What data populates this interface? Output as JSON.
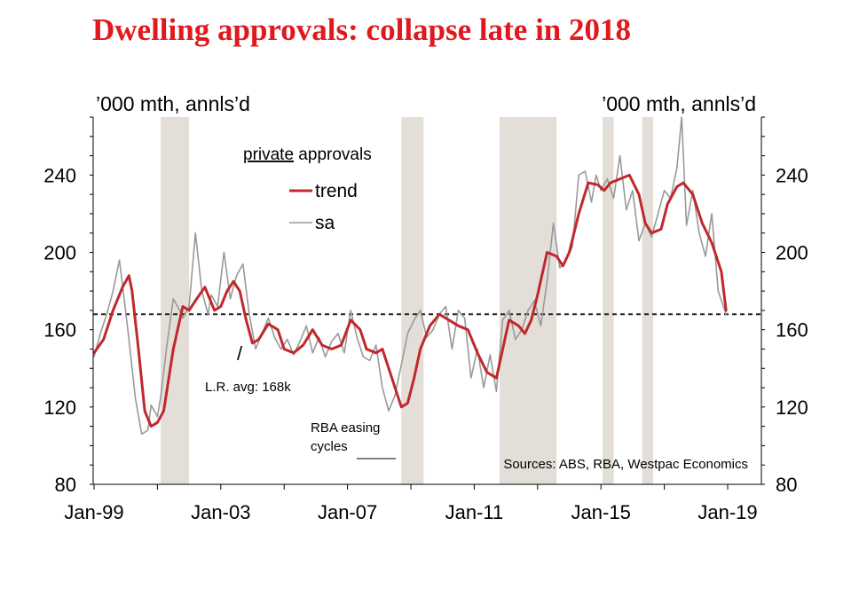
{
  "title": "Dwelling approvals: collapse late in 2018",
  "chart_data": {
    "type": "line",
    "unit_left": "’000 mth, annls’d",
    "unit_right": "’000 mth, annls’d",
    "xlim": [
      1999.0,
      2019.0
    ],
    "ylim": [
      80,
      270
    ],
    "yticks": [
      80,
      120,
      160,
      200,
      240
    ],
    "yticks_right": [
      80,
      120,
      160,
      200,
      240
    ],
    "xticks": [
      {
        "x": 1999.0,
        "label": "Jan-99"
      },
      {
        "x": 2003.0,
        "label": "Jan-03"
      },
      {
        "x": 2007.0,
        "label": "Jan-07"
      },
      {
        "x": 2011.0,
        "label": "Jan-11"
      },
      {
        "x": 2015.0,
        "label": "Jan-15"
      },
      {
        "x": 2019.0,
        "label": "Jan-19"
      }
    ],
    "legend": {
      "title_underlined": "private",
      "title_rest": " approvals",
      "placement": "top-center"
    },
    "series": [
      {
        "name": "trend",
        "color": "#c0282d",
        "width": 3,
        "x": [
          1999.0,
          1999.3,
          1999.6,
          1999.9,
          2000.1,
          2000.2,
          2000.4,
          2000.6,
          2000.8,
          2001.0,
          2001.2,
          2001.5,
          2001.8,
          2002.0,
          2002.2,
          2002.5,
          2002.8,
          2003.0,
          2003.2,
          2003.4,
          2003.6,
          2003.8,
          2004.0,
          2004.2,
          2004.5,
          2004.8,
          2005.0,
          2005.3,
          2005.6,
          2005.9,
          2006.2,
          2006.5,
          2006.8,
          2007.1,
          2007.4,
          2007.6,
          2007.9,
          2008.1,
          2008.4,
          2008.7,
          2008.9,
          2009.1,
          2009.3,
          2009.6,
          2009.9,
          2010.2,
          2010.5,
          2010.8,
          2011.1,
          2011.4,
          2011.7,
          2011.9,
          2012.1,
          2012.4,
          2012.6,
          2012.8,
          2013.0,
          2013.3,
          2013.6,
          2013.8,
          2014.0,
          2014.3,
          2014.6,
          2014.9,
          2015.1,
          2015.3,
          2015.6,
          2015.9,
          2016.2,
          2016.4,
          2016.6,
          2016.9,
          2017.1,
          2017.4,
          2017.6,
          2017.9,
          2018.2,
          2018.5,
          2018.8,
          2018.95
        ],
        "y": [
          148,
          155,
          170,
          182,
          188,
          180,
          150,
          118,
          110,
          112,
          118,
          150,
          172,
          170,
          175,
          182,
          170,
          172,
          180,
          185,
          180,
          165,
          153,
          155,
          163,
          160,
          150,
          148,
          152,
          160,
          152,
          150,
          152,
          165,
          160,
          150,
          148,
          150,
          135,
          120,
          122,
          135,
          150,
          162,
          168,
          165,
          162,
          160,
          148,
          138,
          135,
          150,
          165,
          162,
          158,
          165,
          178,
          200,
          198,
          193,
          200,
          220,
          236,
          235,
          232,
          236,
          238,
          240,
          230,
          215,
          210,
          212,
          225,
          234,
          236,
          230,
          215,
          205,
          190,
          170
        ]
      },
      {
        "name": "sa",
        "color": "#999999",
        "width": 1.6,
        "x": [
          1999.0,
          1999.2,
          1999.4,
          1999.6,
          1999.8,
          1999.95,
          2000.1,
          2000.3,
          2000.5,
          2000.7,
          2000.8,
          2001.0,
          2001.1,
          2001.3,
          2001.5,
          2001.7,
          2001.8,
          2002.0,
          2002.2,
          2002.4,
          2002.6,
          2002.7,
          2002.9,
          2003.1,
          2003.3,
          2003.5,
          2003.7,
          2003.9,
          2004.1,
          2004.3,
          2004.5,
          2004.7,
          2004.9,
          2005.1,
          2005.3,
          2005.5,
          2005.7,
          2005.9,
          2006.1,
          2006.3,
          2006.5,
          2006.7,
          2006.9,
          2007.1,
          2007.3,
          2007.5,
          2007.7,
          2007.9,
          2008.1,
          2008.3,
          2008.5,
          2008.7,
          2008.9,
          2009.1,
          2009.3,
          2009.5,
          2009.7,
          2009.9,
          2010.1,
          2010.3,
          2010.5,
          2010.7,
          2010.9,
          2011.1,
          2011.3,
          2011.5,
          2011.7,
          2011.9,
          2012.1,
          2012.3,
          2012.5,
          2012.7,
          2012.9,
          2013.1,
          2013.3,
          2013.5,
          2013.7,
          2013.9,
          2014.1,
          2014.3,
          2014.5,
          2014.7,
          2014.85,
          2015.0,
          2015.2,
          2015.4,
          2015.6,
          2015.8,
          2016.0,
          2016.2,
          2016.4,
          2016.6,
          2016.8,
          2017.0,
          2017.2,
          2017.4,
          2017.55,
          2017.7,
          2017.9,
          2018.1,
          2018.3,
          2018.5,
          2018.7,
          2018.95
        ],
        "y": [
          146,
          158,
          168,
          180,
          196,
          176,
          155,
          125,
          106,
          108,
          121,
          115,
          125,
          152,
          176,
          170,
          166,
          172,
          210,
          180,
          168,
          178,
          172,
          200,
          176,
          188,
          194,
          168,
          150,
          158,
          166,
          156,
          150,
          155,
          147,
          154,
          162,
          148,
          156,
          146,
          154,
          158,
          148,
          170,
          156,
          146,
          144,
          152,
          130,
          118,
          126,
          142,
          158,
          165,
          170,
          156,
          160,
          168,
          172,
          150,
          170,
          166,
          135,
          150,
          130,
          147,
          128,
          165,
          170,
          155,
          160,
          170,
          175,
          162,
          185,
          215,
          192,
          196,
          203,
          240,
          242,
          226,
          240,
          232,
          238,
          228,
          250,
          222,
          232,
          206,
          215,
          208,
          220,
          232,
          228,
          244,
          270,
          214,
          232,
          210,
          198,
          220,
          180,
          168
        ]
      }
    ],
    "lr_avg": {
      "y": 168,
      "label": "L.R. avg: 168k",
      "marker": "/"
    },
    "easing_cycles": {
      "label_line1": "RBA easing",
      "label_line2": "cycles",
      "color": "#e3dfd8",
      "periods": [
        [
          2001.1,
          2002.0
        ],
        [
          2008.7,
          2009.4
        ],
        [
          2011.8,
          2013.6
        ],
        [
          2015.05,
          2015.4
        ],
        [
          2016.3,
          2016.65
        ]
      ]
    },
    "source": "Sources: ABS, RBA, Westpac Economics"
  }
}
